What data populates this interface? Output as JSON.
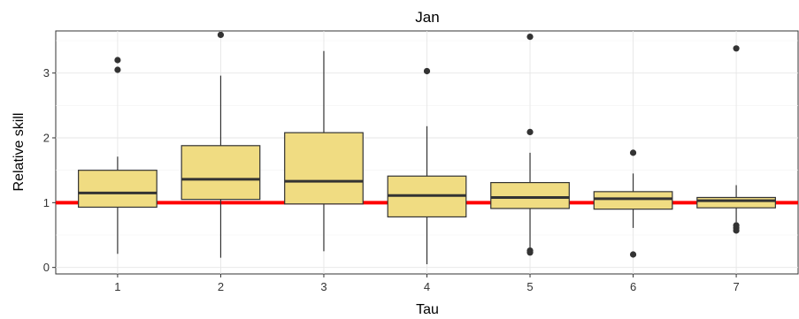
{
  "chart_data": {
    "type": "box",
    "title": "Jan",
    "xlabel": "Tau",
    "ylabel": "Relative skill",
    "categories": [
      "1",
      "2",
      "3",
      "4",
      "5",
      "6",
      "7"
    ],
    "yticks": [
      "0",
      "1",
      "2",
      "3"
    ],
    "ylim": [
      -0.1,
      3.65
    ],
    "grid": true,
    "reference_line": {
      "value": 1.0,
      "color": "#ff0000"
    },
    "box_fill": "#f0dc82",
    "box_stroke": "#333333",
    "boxes": [
      {
        "category": "1",
        "whisker_low": 0.21,
        "q1": 0.93,
        "median": 1.15,
        "q3": 1.5,
        "whisker_high": 1.71,
        "outliers": [
          3.05,
          3.2
        ]
      },
      {
        "category": "2",
        "whisker_low": 0.15,
        "q1": 1.05,
        "median": 1.36,
        "q3": 1.88,
        "whisker_high": 2.96,
        "outliers": [
          3.59
        ]
      },
      {
        "category": "3",
        "whisker_low": 0.25,
        "q1": 0.98,
        "median": 1.33,
        "q3": 2.08,
        "whisker_high": 3.34,
        "outliers": []
      },
      {
        "category": "4",
        "whisker_low": 0.05,
        "q1": 0.78,
        "median": 1.11,
        "q3": 1.41,
        "whisker_high": 2.18,
        "outliers": [
          3.03
        ]
      },
      {
        "category": "5",
        "whisker_low": 0.3,
        "q1": 0.91,
        "median": 1.08,
        "q3": 1.31,
        "whisker_high": 1.77,
        "outliers": [
          0.23,
          0.26,
          2.09,
          3.56
        ]
      },
      {
        "category": "6",
        "whisker_low": 0.61,
        "q1": 0.9,
        "median": 1.06,
        "q3": 1.17,
        "whisker_high": 1.45,
        "outliers": [
          0.2,
          1.77
        ]
      },
      {
        "category": "7",
        "whisker_low": 0.7,
        "q1": 0.92,
        "median": 1.03,
        "q3": 1.08,
        "whisker_high": 1.27,
        "outliers": [
          0.57,
          0.61,
          0.65,
          3.38
        ]
      }
    ]
  }
}
